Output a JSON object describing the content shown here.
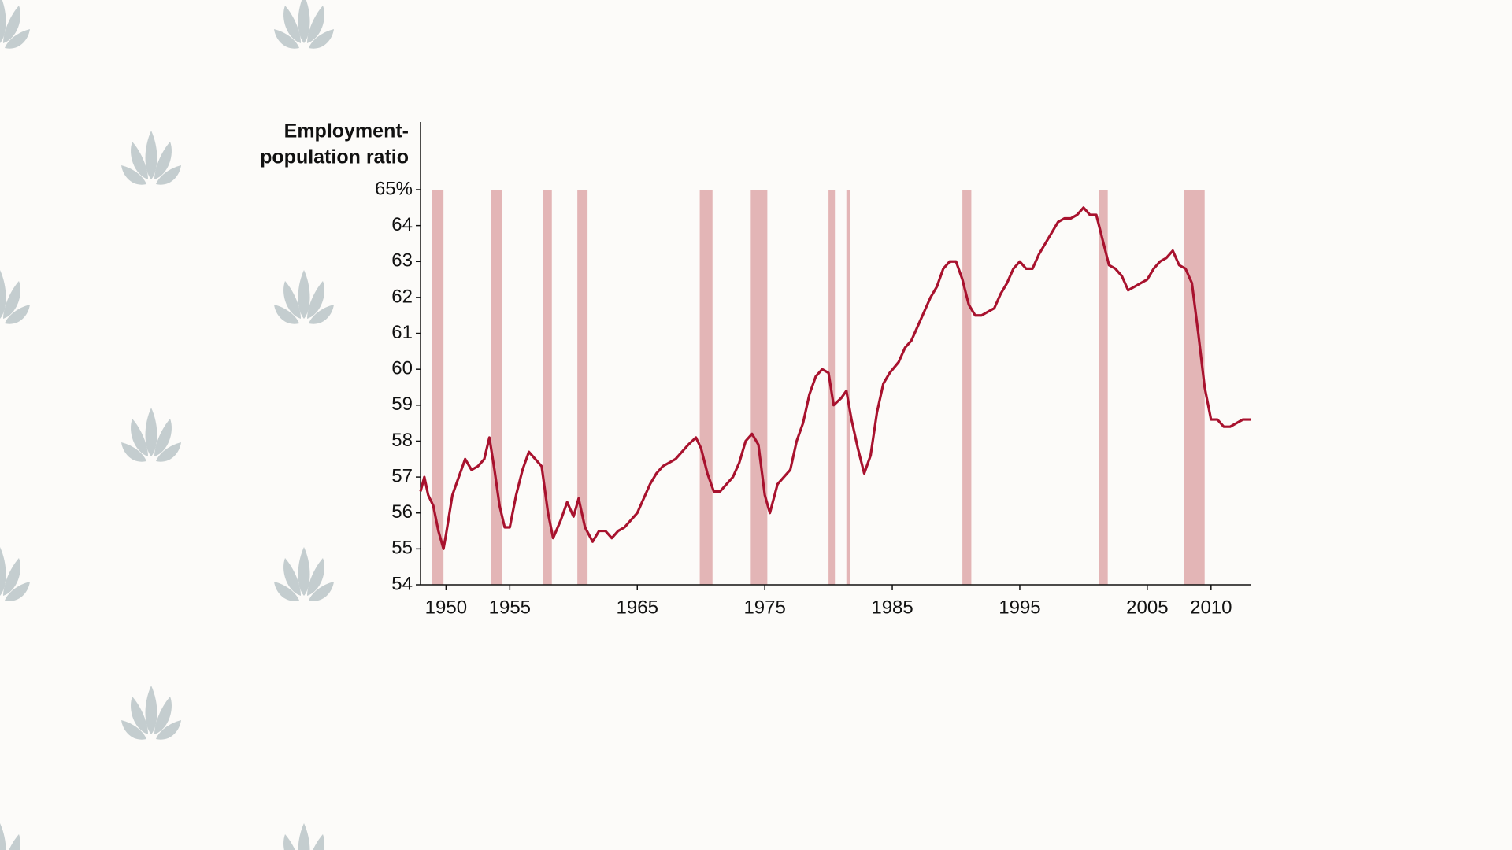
{
  "chart_data": {
    "type": "line",
    "ylabel": [
      "Employment-",
      "population ratio"
    ],
    "color": "#a8122e",
    "recession_color": "#e3b5b6",
    "xlim": [
      1948,
      2013.1
    ],
    "xticks": [
      1950,
      1955,
      1965,
      1975,
      1985,
      1995,
      2005,
      2010
    ],
    "ylim": [
      54,
      65
    ],
    "yticks": [
      54,
      55,
      56,
      57,
      58,
      59,
      60,
      61,
      62,
      63,
      64,
      {
        "value": 65,
        "label": "65%"
      }
    ],
    "recessions": [
      [
        1948.9,
        1949.8
      ],
      [
        1953.5,
        1954.4
      ],
      [
        1957.6,
        1958.3
      ],
      [
        1960.3,
        1961.1
      ],
      [
        1969.9,
        1970.9
      ],
      [
        1973.9,
        1975.2
      ],
      [
        1980.0,
        1980.5
      ],
      [
        1981.4,
        1981.7
      ],
      [
        1990.5,
        1991.2
      ],
      [
        2001.2,
        2001.9
      ],
      [
        2007.9,
        2009.5
      ]
    ],
    "x": [
      1948.0,
      1948.3,
      1948.6,
      1949.0,
      1949.4,
      1949.8,
      1950.0,
      1950.5,
      1951.0,
      1951.5,
      1952.0,
      1952.5,
      1953.0,
      1953.4,
      1953.8,
      1954.2,
      1954.6,
      1955.0,
      1955.5,
      1956.0,
      1956.5,
      1957.0,
      1957.5,
      1958.0,
      1958.4,
      1959.0,
      1959.5,
      1960.0,
      1960.4,
      1960.9,
      1961.5,
      1962.0,
      1962.5,
      1963.0,
      1963.5,
      1964.0,
      1964.5,
      1965.0,
      1965.5,
      1966.0,
      1966.5,
      1967.0,
      1967.5,
      1968.0,
      1968.5,
      1969.0,
      1969.6,
      1970.0,
      1970.5,
      1971.0,
      1971.5,
      1972.0,
      1972.5,
      1973.0,
      1973.5,
      1974.0,
      1974.5,
      1975.0,
      1975.4,
      1976.0,
      1976.5,
      1977.0,
      1977.5,
      1978.0,
      1978.5,
      1979.0,
      1979.5,
      1980.0,
      1980.4,
      1981.0,
      1981.4,
      1981.8,
      1982.3,
      1982.8,
      1983.3,
      1983.8,
      1984.3,
      1984.8,
      1985.5,
      1986.0,
      1986.5,
      1987.0,
      1987.5,
      1988.0,
      1988.5,
      1989.0,
      1989.5,
      1990.0,
      1990.5,
      1991.0,
      1991.5,
      1992.0,
      1992.5,
      1993.0,
      1993.5,
      1994.0,
      1994.5,
      1995.0,
      1995.5,
      1996.0,
      1996.5,
      1997.0,
      1997.5,
      1998.0,
      1998.5,
      1999.0,
      1999.5,
      2000.0,
      2000.5,
      2001.0,
      2001.5,
      2002.0,
      2002.5,
      2003.0,
      2003.5,
      2004.0,
      2004.5,
      2005.0,
      2005.5,
      2006.0,
      2006.5,
      2007.0,
      2007.5,
      2008.0,
      2008.5,
      2009.0,
      2009.5,
      2010.0,
      2010.5,
      2011.0,
      2011.5,
      2012.0,
      2012.5,
      2013.0,
      2013.1
    ],
    "values": [
      56.6,
      57.0,
      56.5,
      56.2,
      55.5,
      55.0,
      55.4,
      56.5,
      57.0,
      57.5,
      57.2,
      57.3,
      57.5,
      58.1,
      57.2,
      56.2,
      55.6,
      55.6,
      56.5,
      57.2,
      57.7,
      57.5,
      57.3,
      56.0,
      55.3,
      55.8,
      56.3,
      55.9,
      56.4,
      55.6,
      55.2,
      55.5,
      55.5,
      55.3,
      55.5,
      55.6,
      55.8,
      56.0,
      56.4,
      56.8,
      57.1,
      57.3,
      57.4,
      57.5,
      57.7,
      57.9,
      58.1,
      57.8,
      57.1,
      56.6,
      56.6,
      56.8,
      57.0,
      57.4,
      58.0,
      58.2,
      57.9,
      56.5,
      56.0,
      56.8,
      57.0,
      57.2,
      58.0,
      58.5,
      59.3,
      59.8,
      60.0,
      59.9,
      59.0,
      59.2,
      59.4,
      58.6,
      57.8,
      57.1,
      57.6,
      58.8,
      59.6,
      59.9,
      60.2,
      60.6,
      60.8,
      61.2,
      61.6,
      62.0,
      62.3,
      62.8,
      63.0,
      63.0,
      62.5,
      61.8,
      61.5,
      61.5,
      61.6,
      61.7,
      62.1,
      62.4,
      62.8,
      63.0,
      62.8,
      62.8,
      63.2,
      63.5,
      63.8,
      64.1,
      64.2,
      64.2,
      64.3,
      64.5,
      64.3,
      64.3,
      63.6,
      62.9,
      62.8,
      62.6,
      62.2,
      62.3,
      62.4,
      62.5,
      62.8,
      63.0,
      63.1,
      63.3,
      62.9,
      62.8,
      62.4,
      61.0,
      59.5,
      58.6,
      58.6,
      58.4,
      58.4,
      58.5,
      58.6,
      58.6,
      58.6
    ]
  }
}
